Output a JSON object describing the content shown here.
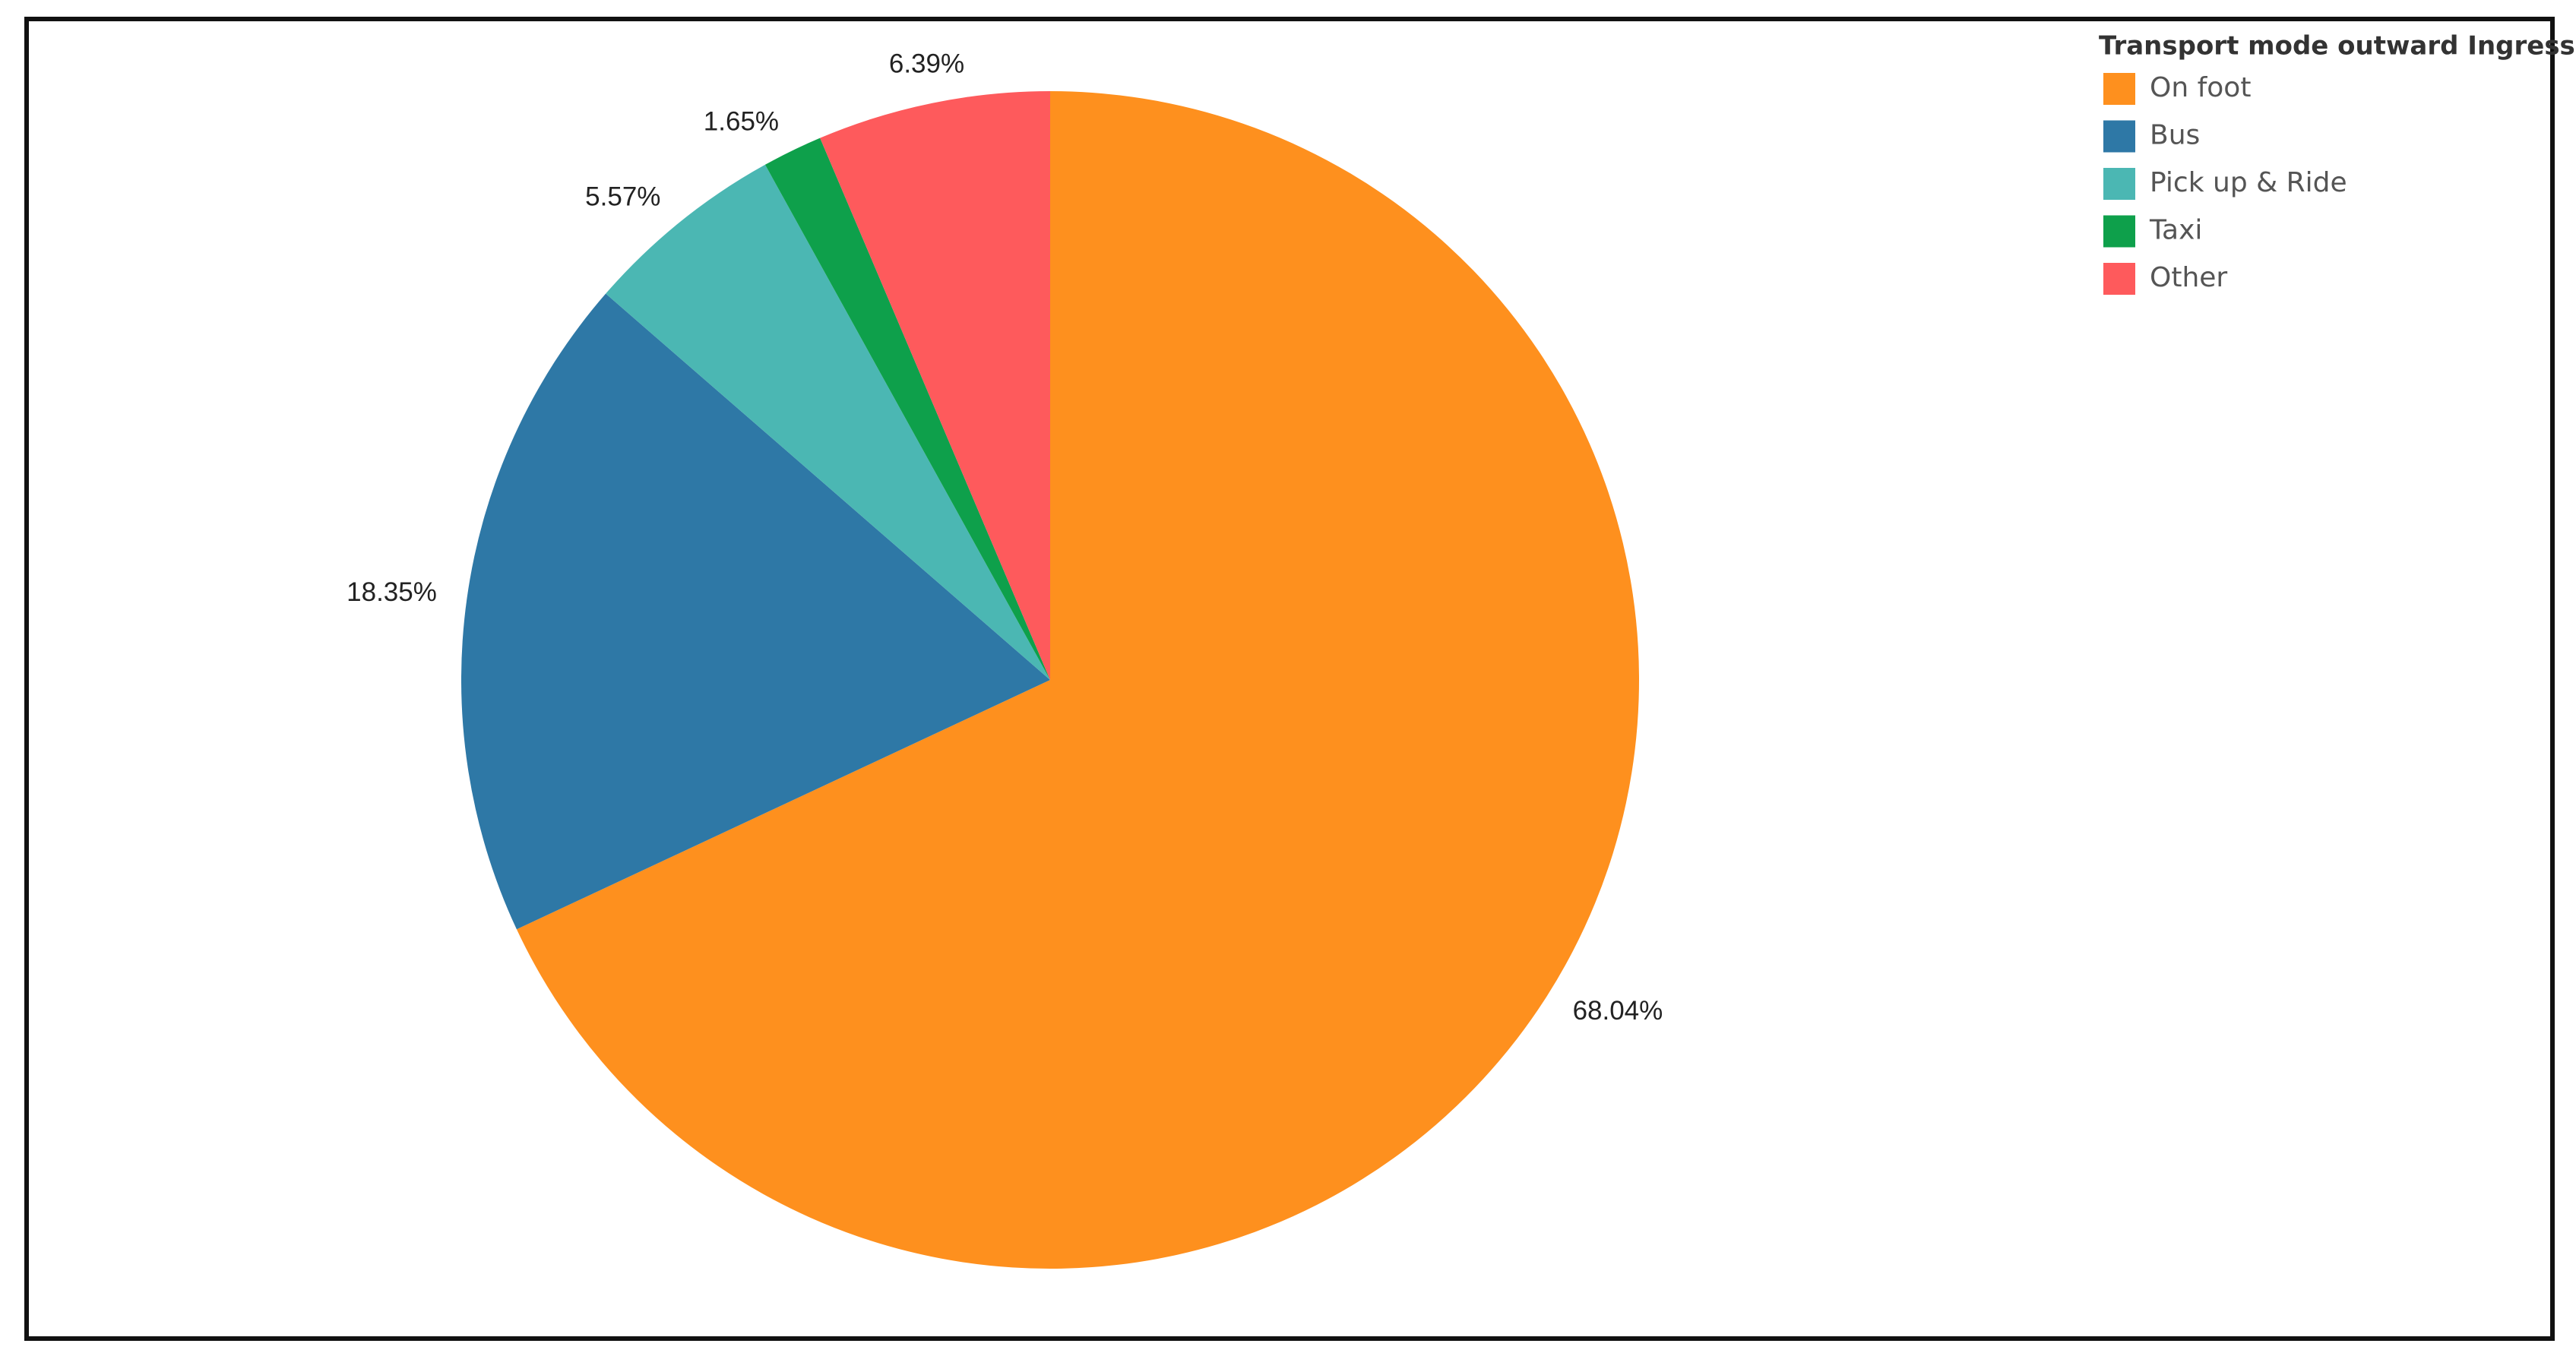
{
  "chart_data": {
    "type": "pie",
    "legend_title": "Transport mode outward Ingress",
    "categories": [
      "On foot",
      "Bus",
      "Pick up & Ride",
      "Taxi",
      "Other"
    ],
    "values": [
      68.04,
      18.35,
      5.57,
      1.65,
      6.39
    ],
    "value_labels": [
      "68.04%",
      "18.35%",
      "5.57%",
      "1.65%",
      "6.39%"
    ],
    "colors": [
      "#fe901e",
      "#2e78a6",
      "#4bb7b3",
      "#0ea04b",
      "#fe5a5c"
    ],
    "legend": "top-right"
  }
}
